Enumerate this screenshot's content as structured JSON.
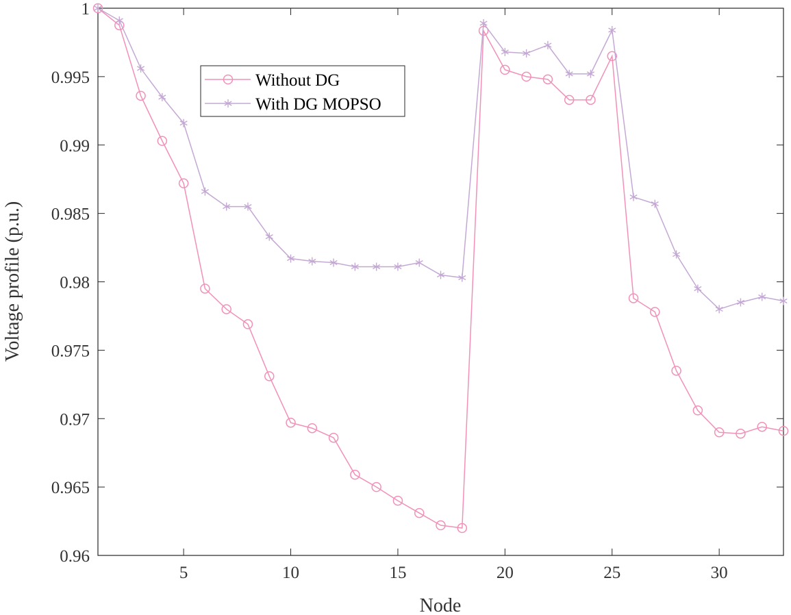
{
  "chart_data": {
    "type": "line",
    "title": "",
    "xlabel": "Node",
    "ylabel": "Voltage profile (p.u.)",
    "xlim": [
      1,
      33
    ],
    "ylim": [
      0.96,
      1.0
    ],
    "xticks": [
      5,
      10,
      15,
      20,
      25,
      30
    ],
    "yticks": [
      0.96,
      0.965,
      0.97,
      0.975,
      0.98,
      0.985,
      0.99,
      0.995,
      1
    ],
    "ytick_labels": [
      "0.96",
      "0.965",
      "0.97",
      "0.975",
      "0.98",
      "0.985",
      "0.99",
      "0.995",
      "1"
    ],
    "grid": false,
    "legend_placement": "top-left",
    "x": [
      1,
      2,
      3,
      4,
      5,
      6,
      7,
      8,
      9,
      10,
      11,
      12,
      13,
      14,
      15,
      16,
      17,
      18,
      19,
      20,
      21,
      22,
      23,
      24,
      25,
      26,
      27,
      28,
      29,
      30,
      31,
      32,
      33
    ],
    "series": [
      {
        "name": "Without DG",
        "color": "#f290b8",
        "marker": "circle",
        "values": [
          1.0,
          0.99875,
          0.9936,
          0.9903,
          0.9872,
          0.9795,
          0.978,
          0.9769,
          0.9731,
          0.9697,
          0.9693,
          0.9686,
          0.9659,
          0.965,
          0.964,
          0.9631,
          0.9622,
          0.962,
          0.99835,
          0.9955,
          0.995,
          0.9948,
          0.9933,
          0.9933,
          0.9965,
          0.9788,
          0.9778,
          0.9735,
          0.9706,
          0.969,
          0.9689,
          0.9694,
          0.9691
        ]
      },
      {
        "name": "With DG MOPSO",
        "color": "#c4a8d4",
        "marker": "asterisk",
        "values": [
          1.0,
          0.9991,
          0.9956,
          0.9935,
          0.9916,
          0.9866,
          0.9855,
          0.9855,
          0.9833,
          0.9817,
          0.9815,
          0.9814,
          0.9811,
          0.9811,
          0.9811,
          0.9814,
          0.9805,
          0.9803,
          0.9989,
          0.9968,
          0.9967,
          0.9973,
          0.9952,
          0.9952,
          0.9984,
          0.9862,
          0.9857,
          0.982,
          0.9795,
          0.978,
          0.9785,
          0.9789,
          0.9786
        ]
      }
    ]
  }
}
